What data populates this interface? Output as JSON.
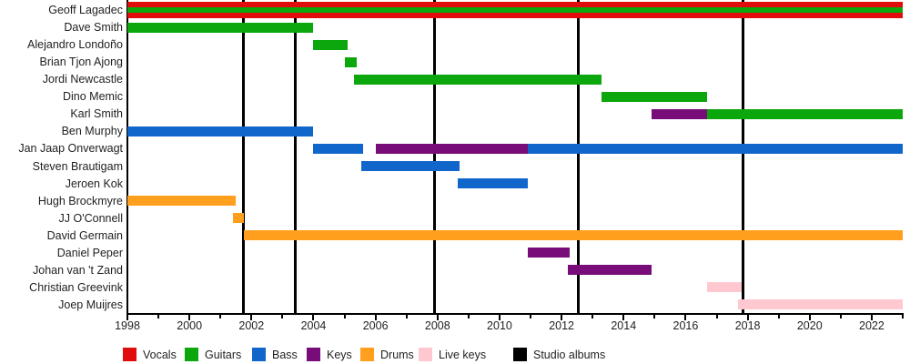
{
  "chart_data": {
    "type": "gantt_timeline",
    "title": "",
    "x_axis": {
      "min": 1998,
      "max": 2023,
      "tick_step": 1,
      "label_step": 2,
      "tick_labels": [
        "1998",
        "2000",
        "2002",
        "2004",
        "2006",
        "2008",
        "2010",
        "2012",
        "2014",
        "2016",
        "2018",
        "2020",
        "2022"
      ]
    },
    "roles_colors": {
      "Vocals": "#E10D0D",
      "Guitars": "#0CA70C",
      "Bass": "#1166CC",
      "Keys": "#780C78",
      "Drums": "#FF9F1D",
      "Live keys": "#FFC8D1",
      "Studio albums": "#000000"
    },
    "members": [
      {
        "name": "Geoff Lagadec",
        "segments": [
          {
            "role": "Vocals",
            "start": 1998,
            "end": 2023,
            "band": "full"
          },
          {
            "role": "Guitars",
            "start": 1998,
            "end": 2023,
            "band": "stripe"
          }
        ]
      },
      {
        "name": "Dave Smith",
        "segments": [
          {
            "role": "Guitars",
            "start": 1998,
            "end": 2004
          }
        ]
      },
      {
        "name": "Alejandro Londoño",
        "segments": [
          {
            "role": "Guitars",
            "start": 2004,
            "end": 2005.1
          }
        ]
      },
      {
        "name": "Brian Tjon Ajong",
        "segments": [
          {
            "role": "Guitars",
            "start": 2005,
            "end": 2005.4
          }
        ]
      },
      {
        "name": "Jordi Newcastle",
        "segments": [
          {
            "role": "Guitars",
            "start": 2005.3,
            "end": 2013.3
          }
        ]
      },
      {
        "name": "Dino Memic",
        "segments": [
          {
            "role": "Guitars",
            "start": 2013.3,
            "end": 2016.7
          }
        ]
      },
      {
        "name": "Karl Smith",
        "segments": [
          {
            "role": "Keys",
            "start": 2014.9,
            "end": 2016.7
          },
          {
            "role": "Guitars",
            "start": 2016.7,
            "end": 2023
          }
        ]
      },
      {
        "name": "Ben Murphy",
        "segments": [
          {
            "role": "Bass",
            "start": 1998,
            "end": 2004
          }
        ]
      },
      {
        "name": "Jan Jaap Onverwagt",
        "segments": [
          {
            "role": "Bass",
            "start": 2004,
            "end": 2005.6
          },
          {
            "role": "Keys",
            "start": 2006,
            "end": 2010.9
          },
          {
            "role": "Bass",
            "start": 2010.9,
            "end": 2023
          }
        ]
      },
      {
        "name": "Steven Brautigam",
        "segments": [
          {
            "role": "Bass",
            "start": 2005.55,
            "end": 2008.7
          }
        ]
      },
      {
        "name": "Jeroen Kok",
        "segments": [
          {
            "role": "Bass",
            "start": 2008.65,
            "end": 2010.9
          }
        ]
      },
      {
        "name": "Hugh Brockmyre",
        "segments": [
          {
            "role": "Drums",
            "start": 1998,
            "end": 2001.5
          }
        ]
      },
      {
        "name": "JJ O'Connell",
        "segments": [
          {
            "role": "Drums",
            "start": 2001.4,
            "end": 2001.75
          }
        ]
      },
      {
        "name": "David Germain",
        "segments": [
          {
            "role": "Drums",
            "start": 2001.75,
            "end": 2023
          }
        ]
      },
      {
        "name": "Daniel Peper",
        "segments": [
          {
            "role": "Keys",
            "start": 2010.9,
            "end": 2012.25
          }
        ]
      },
      {
        "name": "Johan van 't Zand",
        "segments": [
          {
            "role": "Keys",
            "start": 2012.2,
            "end": 2014.9
          }
        ]
      },
      {
        "name": "Christian Greevink",
        "segments": [
          {
            "role": "Live keys",
            "start": 2016.7,
            "end": 2017.8
          }
        ]
      },
      {
        "name": "Joep Muijres",
        "segments": [
          {
            "role": "Live keys",
            "start": 2017.7,
            "end": 2023
          }
        ]
      }
    ],
    "album_lines": [
      2001.75,
      2003.4,
      2007.9,
      2012.55,
      2017.85
    ],
    "legend": [
      {
        "label": "Vocals",
        "role": "Vocals"
      },
      {
        "label": "Guitars",
        "role": "Guitars"
      },
      {
        "label": "Bass",
        "role": "Bass"
      },
      {
        "label": "Keys",
        "role": "Keys"
      },
      {
        "label": "Drums",
        "role": "Drums"
      },
      {
        "label": "Live keys",
        "role": "Live keys"
      },
      {
        "label": "Studio albums",
        "role": "Studio albums"
      }
    ]
  }
}
